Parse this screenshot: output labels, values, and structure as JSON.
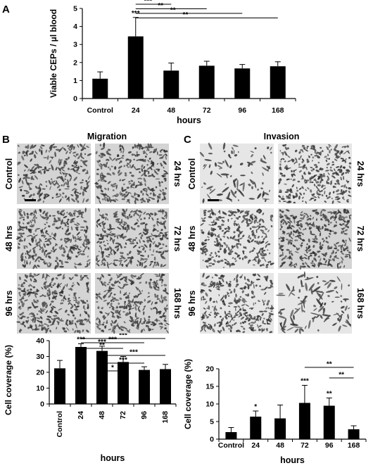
{
  "panels": {
    "A": "A",
    "B": "B",
    "C": "C"
  },
  "titles": {
    "migration": "Migration",
    "invasion": "Invasion"
  },
  "micrographs": {
    "B": [
      "Control",
      "24 hrs",
      "48 hrs",
      "72 hrs",
      "96 hrs",
      "168 hrs"
    ],
    "C": [
      "Control",
      "24 hrs",
      "48 hrs",
      "72 hrs",
      "96 hrs",
      "168 hrs"
    ]
  },
  "chart_data": [
    {
      "id": "A",
      "type": "bar",
      "categories": [
        "Control",
        "24",
        "48",
        "72",
        "96",
        "168"
      ],
      "values": [
        1.1,
        3.45,
        1.55,
        1.82,
        1.67,
        1.79
      ],
      "errors": [
        0.38,
        1.05,
        0.42,
        0.25,
        0.22,
        0.25
      ],
      "xlabel": "hours",
      "ylabel": "Viable CEPs / µl blood",
      "ylim": [
        0,
        5
      ],
      "yticks": [
        0,
        1,
        2,
        3,
        4,
        5
      ],
      "bar_stars": [
        "",
        "***",
        "",
        "",
        "",
        ""
      ],
      "brackets": [
        {
          "from": 1,
          "to": 2,
          "label": "***"
        },
        {
          "from": 1,
          "to": 3,
          "label": "**"
        },
        {
          "from": 1,
          "to": 4,
          "label": "**"
        },
        {
          "from": 1,
          "to": 5,
          "label": "**"
        }
      ]
    },
    {
      "id": "B",
      "type": "bar",
      "categories": [
        "Control",
        "24",
        "48",
        "72",
        "96",
        "168"
      ],
      "values": [
        22.5,
        36.0,
        33.5,
        26.5,
        21.5,
        22.0
      ],
      "errors": [
        5.0,
        2.0,
        3.0,
        3.5,
        2.0,
        3.0
      ],
      "xlabel": "hours",
      "ylabel": "Cell coverage (%)",
      "ylim": [
        0,
        40
      ],
      "yticks": [
        0,
        10,
        20,
        30,
        40
      ],
      "bar_stars": [
        "",
        "***",
        "***",
        "",
        "",
        ""
      ],
      "brackets": [
        {
          "from": 2,
          "to": 3,
          "label": "*"
        },
        {
          "from": 2,
          "to": 4,
          "label": "***"
        },
        {
          "from": 2,
          "to": 5,
          "label": "***"
        },
        {
          "from": 1,
          "to": 3,
          "label": "**"
        },
        {
          "from": 1,
          "to": 4,
          "label": "***"
        },
        {
          "from": 1,
          "to": 5,
          "label": "***"
        }
      ]
    },
    {
      "id": "C",
      "type": "bar",
      "categories": [
        "Control",
        "24",
        "48",
        "72",
        "96",
        "168"
      ],
      "values": [
        2.0,
        6.4,
        5.9,
        10.3,
        9.5,
        2.8
      ],
      "errors": [
        1.3,
        1.6,
        3.8,
        5.0,
        2.2,
        1.0
      ],
      "xlabel": "hours",
      "ylabel": "Cell coverage (%)",
      "ylim": [
        0,
        20
      ],
      "yticks": [
        0,
        5,
        10,
        15,
        20
      ],
      "bar_stars": [
        "",
        "*",
        "",
        "***",
        "**",
        ""
      ],
      "brackets": [
        {
          "from": 4,
          "to": 5,
          "label": "**"
        },
        {
          "from": 3,
          "to": 5,
          "label": "**"
        }
      ]
    }
  ],
  "colors": {
    "bar": "#000000",
    "micrograph_bg": "#d4d4d4",
    "cells": "#3a3a3a"
  }
}
